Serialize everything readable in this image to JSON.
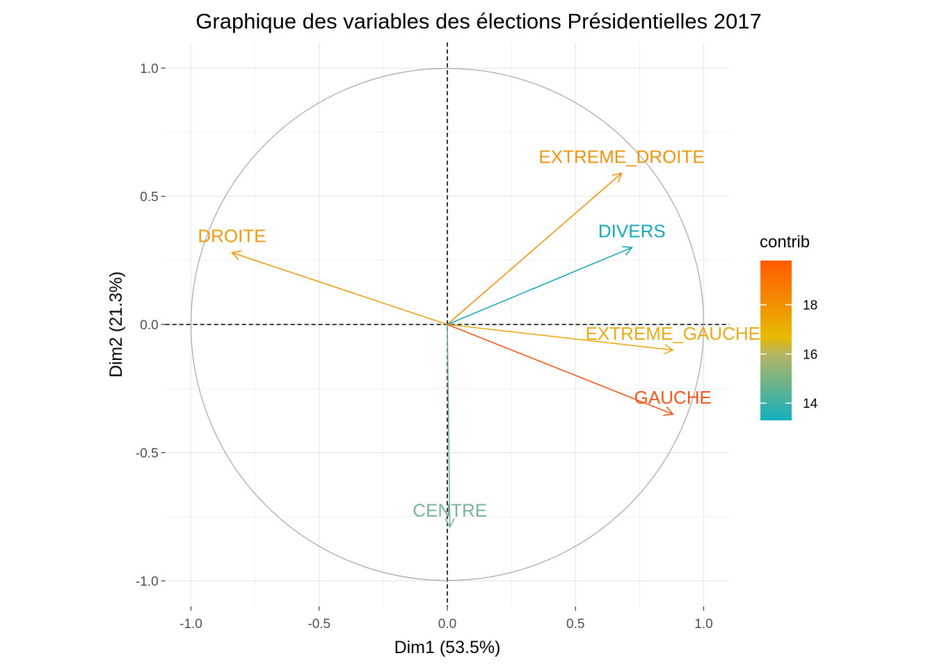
{
  "chart_data": {
    "type": "scatter",
    "subtype": "pca-variable-correlation-circle",
    "title": "Graphique des variables des élections  Présidentielles 2017",
    "xlabel": "Dim1 (53.5%)",
    "ylabel": "Dim2 (21.3%)",
    "xlim": [
      -1.1,
      1.1
    ],
    "ylim": [
      -1.1,
      1.1
    ],
    "xticks": [
      -1.0,
      -0.5,
      0.0,
      0.5,
      1.0
    ],
    "xtick_labels": [
      "-1.0",
      "-0.5",
      "0.0",
      "0.5",
      "1.0"
    ],
    "yticks": [
      -1.0,
      -0.5,
      0.0,
      0.5,
      1.0
    ],
    "ytick_labels": [
      "-1.0",
      "-0.5",
      "0.0",
      "0.5",
      "1.0"
    ],
    "grid": true,
    "unit_circle": true,
    "reference_lines": {
      "x": 0,
      "y": 0,
      "style": "dashed"
    },
    "variables": [
      {
        "name": "EXTREME_DROITE",
        "x": 0.68,
        "y": 0.59,
        "contrib": 17.8,
        "color": "#EE930E"
      },
      {
        "name": "DIVERS",
        "x": 0.72,
        "y": 0.3,
        "contrib": 13.3,
        "color": "#12A9B6"
      },
      {
        "name": "DROITE",
        "x": -0.84,
        "y": 0.28,
        "contrib": 17.5,
        "color": "#EE9A10"
      },
      {
        "name": "EXTREME_GAUCHE",
        "x": 0.88,
        "y": -0.1,
        "contrib": 16.5,
        "color": "#E8A915"
      },
      {
        "name": "GAUCHE",
        "x": 0.88,
        "y": -0.35,
        "contrib": 19.6,
        "color": "#F0561A"
      },
      {
        "name": "CENTRE",
        "x": 0.01,
        "y": -0.79,
        "contrib": 14.4,
        "color": "#77B196"
      }
    ],
    "legend": {
      "title": "contrib",
      "position": "right",
      "ticks": [
        14,
        16,
        18
      ],
      "tick_labels": [
        "14",
        "16",
        "18"
      ],
      "range": [
        13.3,
        19.8
      ],
      "gradient": [
        "#12B0BE",
        "#E7BA00",
        "#FF5A00"
      ]
    }
  }
}
